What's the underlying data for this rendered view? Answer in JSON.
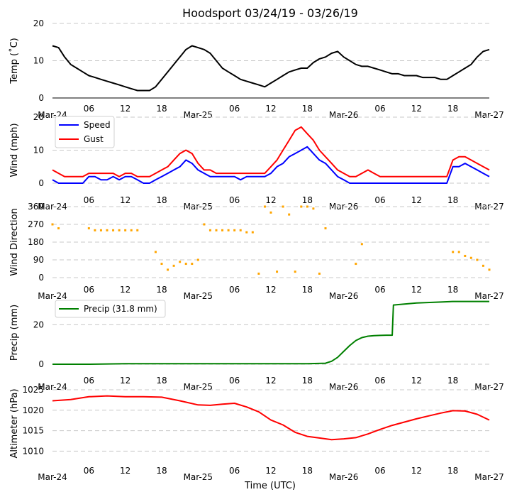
{
  "title": "Hoodsport 03/24/19 - 03/26/19",
  "x_axis_label": "Time (UTC)",
  "x_tick_labels": [
    "Mar-24",
    "06",
    "12",
    "18",
    "Mar-25",
    "06",
    "12",
    "18",
    "Mar-26",
    "06",
    "12",
    "18",
    "Mar-27"
  ],
  "chart_data": [
    {
      "type": "line",
      "name": "temperature",
      "ylabel": "Temp ($^\\circ$C)",
      "ylabel_display": "Temp (˚C)",
      "ylim": [
        0,
        20
      ],
      "yticks": [
        0,
        10,
        20
      ],
      "color": "#000000",
      "x_hours": [
        0,
        1,
        2,
        3,
        4,
        5,
        6,
        7,
        8,
        9,
        10,
        11,
        12,
        13,
        14,
        15,
        16,
        17,
        18,
        19,
        20,
        21,
        22,
        23,
        24,
        25,
        26,
        27,
        28,
        29,
        30,
        31,
        32,
        33,
        34,
        35,
        36,
        37,
        38,
        39,
        40,
        41,
        42,
        43,
        44,
        45,
        46,
        47,
        48,
        49,
        50,
        51,
        52,
        53,
        54,
        55,
        56,
        57,
        58,
        59,
        60,
        61,
        62,
        63,
        64,
        65,
        66,
        67,
        68,
        69,
        70,
        71,
        72
      ],
      "values": [
        14,
        13.5,
        11,
        9,
        8,
        7,
        6,
        5.5,
        5,
        4.5,
        4,
        3.5,
        3,
        2.5,
        2,
        2,
        2,
        3,
        5,
        7,
        9,
        11,
        13,
        14,
        13.5,
        13,
        12,
        10,
        8,
        7,
        6,
        5,
        4.5,
        4,
        3.5,
        3,
        4,
        5,
        6,
        7,
        7.5,
        8,
        8,
        9.5,
        10.5,
        11,
        12,
        12.5,
        11,
        10,
        9,
        8.5,
        8.5,
        8,
        7.5,
        7,
        6.5,
        6.5,
        6,
        6,
        6,
        5.5,
        5.5,
        5.5,
        5,
        5,
        6,
        7,
        8,
        9,
        11,
        12.5,
        13
      ]
    },
    {
      "type": "line",
      "name": "wind",
      "ylabel": "Wind (mph)",
      "ylim": [
        0,
        20
      ],
      "yticks": [
        0,
        10,
        20
      ],
      "legend": "top-left",
      "series": [
        {
          "name": "Speed",
          "color": "#0000ff",
          "x_hours": [
            0,
            1,
            2,
            3,
            4,
            5,
            6,
            7,
            8,
            9,
            10,
            11,
            12,
            13,
            14,
            15,
            16,
            17,
            18,
            19,
            20,
            21,
            22,
            23,
            24,
            25,
            26,
            27,
            28,
            29,
            30,
            31,
            32,
            33,
            34,
            35,
            36,
            37,
            38,
            39,
            40,
            41,
            42,
            43,
            44,
            45,
            46,
            47,
            48,
            49,
            50,
            51,
            52,
            53,
            54,
            55,
            56,
            57,
            58,
            59,
            60,
            61,
            62,
            63,
            64,
            65,
            66,
            67,
            68,
            69,
            70,
            71,
            72
          ],
          "values": [
            1,
            0,
            0,
            0,
            0,
            0,
            2,
            2,
            1,
            1,
            2,
            1,
            2,
            2,
            1,
            0,
            0,
            1,
            2,
            3,
            4,
            5,
            7,
            6,
            4,
            3,
            2,
            2,
            2,
            2,
            2,
            1,
            2,
            2,
            2,
            2,
            3,
            5,
            6,
            8,
            9,
            10,
            11,
            9,
            7,
            6,
            4,
            2,
            1,
            0,
            0,
            0,
            0,
            0,
            0,
            0,
            0,
            0,
            0,
            0,
            0,
            0,
            0,
            0,
            0,
            0,
            5,
            5,
            6,
            5,
            4,
            3,
            2
          ]
        },
        {
          "name": "Gust",
          "color": "#ff0000",
          "x_hours": [
            0,
            1,
            2,
            3,
            4,
            5,
            6,
            7,
            8,
            9,
            10,
            11,
            12,
            13,
            14,
            15,
            16,
            17,
            18,
            19,
            20,
            21,
            22,
            23,
            24,
            25,
            26,
            27,
            28,
            29,
            30,
            31,
            32,
            33,
            34,
            35,
            36,
            37,
            38,
            39,
            40,
            41,
            42,
            43,
            44,
            45,
            46,
            47,
            48,
            49,
            50,
            51,
            52,
            53,
            54,
            55,
            56,
            57,
            58,
            59,
            60,
            61,
            62,
            63,
            64,
            65,
            66,
            67,
            68,
            69,
            70,
            71,
            72
          ],
          "values": [
            4,
            3,
            2,
            2,
            2,
            2,
            3,
            3,
            3,
            3,
            3,
            2,
            3,
            3,
            2,
            2,
            2,
            3,
            4,
            5,
            7,
            9,
            10,
            9,
            6,
            4,
            4,
            3,
            3,
            3,
            3,
            3,
            3,
            3,
            3,
            3,
            5,
            7,
            10,
            13,
            16,
            17,
            15,
            13,
            10,
            8,
            6,
            4,
            3,
            2,
            2,
            3,
            4,
            3,
            2,
            2,
            2,
            2,
            2,
            2,
            2,
            2,
            2,
            2,
            2,
            2,
            7,
            8,
            8,
            7,
            6,
            5,
            4
          ]
        }
      ]
    },
    {
      "type": "scatter",
      "name": "wind_direction",
      "ylabel": "Wind Direction",
      "ylim": [
        0,
        360
      ],
      "yticks": [
        0,
        90,
        180,
        270,
        360
      ],
      "color": "#ffa500",
      "x_hours": [
        0,
        1,
        2,
        3,
        4,
        5,
        6,
        7,
        8,
        9,
        10,
        11,
        12,
        13,
        14,
        15,
        16,
        17,
        18,
        19,
        20,
        21,
        22,
        23,
        24,
        25,
        26,
        27,
        28,
        29,
        30,
        31,
        32,
        33,
        34,
        35,
        36,
        37,
        38,
        39,
        40,
        41,
        42,
        43,
        44,
        45,
        46,
        47,
        48,
        49,
        50,
        51,
        52,
        53,
        54,
        55,
        56,
        57,
        58,
        59,
        60,
        61,
        62,
        63,
        64,
        65,
        66,
        67,
        68,
        69,
        70,
        71,
        72
      ],
      "values": [
        270,
        250,
        null,
        null,
        null,
        null,
        250,
        240,
        240,
        240,
        240,
        240,
        240,
        240,
        240,
        null,
        null,
        130,
        70,
        40,
        60,
        80,
        70,
        70,
        90,
        270,
        240,
        240,
        240,
        240,
        240,
        240,
        230,
        230,
        20,
        360,
        330,
        30,
        360,
        320,
        30,
        360,
        360,
        350,
        20,
        250,
        null,
        null,
        null,
        null,
        70,
        170,
        null,
        null,
        null,
        null,
        null,
        null,
        null,
        null,
        null,
        null,
        null,
        null,
        null,
        null,
        130,
        130,
        110,
        100,
        90,
        60,
        40
      ]
    },
    {
      "type": "line",
      "name": "precip",
      "ylabel": "Precip (mm)",
      "ylim": [
        0,
        32
      ],
      "yticks": [
        0,
        20
      ],
      "legend": "top-left",
      "series": [
        {
          "name": "Precip (31.8 mm)",
          "color": "#008000",
          "x_hours": [
            0,
            6,
            12,
            18,
            24,
            30,
            36,
            42,
            45,
            46,
            47,
            48,
            49,
            50,
            51,
            52,
            53,
            54,
            55,
            56,
            56.2,
            60,
            64,
            66,
            72
          ],
          "values": [
            0,
            0,
            0.3,
            0.3,
            0.3,
            0.3,
            0.3,
            0.3,
            0.5,
            1.5,
            3.5,
            6.5,
            9.5,
            12,
            13.5,
            14.2,
            14.5,
            14.6,
            14.7,
            14.7,
            30,
            31,
            31.5,
            31.8,
            31.8
          ]
        }
      ]
    },
    {
      "type": "line",
      "name": "altimeter",
      "ylabel": "Altimeter (hPa)",
      "ylim": [
        1008.5,
        1025
      ],
      "yticks": [
        1010,
        1015,
        1020,
        1025
      ],
      "color": "#ff0000",
      "x_hours": [
        0,
        3,
        6,
        9,
        12,
        15,
        18,
        21,
        24,
        26,
        28,
        30,
        32,
        34,
        36,
        38,
        40,
        42,
        44,
        46,
        48,
        50,
        52,
        54,
        56,
        58,
        60,
        62,
        64,
        66,
        68,
        70,
        72
      ],
      "values": [
        1022.3,
        1022.6,
        1023.3,
        1023.5,
        1023.3,
        1023.3,
        1023.2,
        1022.3,
        1021.3,
        1021.2,
        1021.5,
        1021.7,
        1020.8,
        1019.6,
        1017.6,
        1016.4,
        1014.6,
        1013.6,
        1013.2,
        1012.8,
        1013,
        1013.3,
        1014.2,
        1015.3,
        1016.3,
        1017.1,
        1017.9,
        1018.6,
        1019.3,
        1019.9,
        1019.8,
        1019,
        1017.6
      ]
    }
  ]
}
